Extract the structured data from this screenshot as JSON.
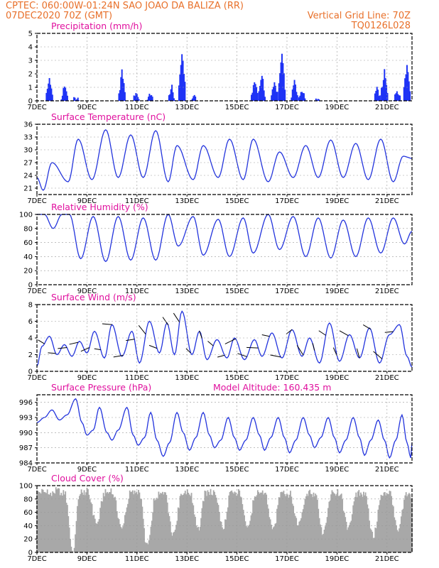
{
  "header": {
    "station_line": "CPTEC:   060:00W-01:24N  SAO JOAO DA BALIZA (RR)",
    "date_line": "07DEC2020 70Z (GMT)",
    "vgrid_line": "Vertical Grid Line: 70Z",
    "code": "TQ0126L028"
  },
  "colors": {
    "line": "#2233dd",
    "bar": "#1f33f5",
    "cloud": "#a8a8a8",
    "header": "#e8702a",
    "title": "#e0109e"
  },
  "x_tick_labels": [
    "7DEC",
    "9DEC",
    "11DEC",
    "13DEC",
    "15DEC",
    "17DEC",
    "19DEC",
    "21DEC"
  ],
  "chart_data": [
    {
      "type": "bar",
      "title": "Precipitation (mm/h)",
      "ylim": [
        0,
        5
      ],
      "yticks": [
        0,
        1,
        2,
        3,
        4,
        5
      ],
      "x_range_days": [
        7,
        22
      ],
      "series_daily_peaks": [
        {
          "day": 7.5,
          "value": 2.0
        },
        {
          "day": 8.1,
          "value": 1.2
        },
        {
          "day": 8.6,
          "value": 0.5
        },
        {
          "day": 10.4,
          "value": 2.2
        },
        {
          "day": 11.0,
          "value": 0.8
        },
        {
          "day": 11.5,
          "value": 0.6
        },
        {
          "day": 12.4,
          "value": 1.1
        },
        {
          "day": 12.8,
          "value": 3.8
        },
        {
          "day": 13.3,
          "value": 0.4
        },
        {
          "day": 15.7,
          "value": 1.8
        },
        {
          "day": 16.0,
          "value": 2.0
        },
        {
          "day": 16.5,
          "value": 1.8
        },
        {
          "day": 16.8,
          "value": 3.6
        },
        {
          "day": 17.3,
          "value": 1.8
        },
        {
          "day": 17.6,
          "value": 0.8
        },
        {
          "day": 18.2,
          "value": 0.5
        },
        {
          "day": 20.6,
          "value": 0.9
        },
        {
          "day": 20.9,
          "value": 2.5
        },
        {
          "day": 21.4,
          "value": 0.8
        },
        {
          "day": 21.8,
          "value": 3.1
        }
      ]
    },
    {
      "type": "line",
      "title": "Surface Temperature (nC)",
      "ylim": [
        19.5,
        36
      ],
      "yticks": [
        21,
        24,
        27,
        30,
        33,
        36
      ],
      "x_range_days": [
        7,
        22
      ],
      "daily_minmax": [
        {
          "day": 7.0,
          "value": 23.5
        },
        {
          "day": 7.25,
          "value": 20.5
        },
        {
          "day": 7.6,
          "value": 27.0
        },
        {
          "day": 8.25,
          "value": 22.5
        },
        {
          "day": 8.65,
          "value": 32.5
        },
        {
          "day": 9.2,
          "value": 23.0
        },
        {
          "day": 9.75,
          "value": 34.7
        },
        {
          "day": 10.25,
          "value": 23.5
        },
        {
          "day": 10.75,
          "value": 33.5
        },
        {
          "day": 11.25,
          "value": 23.5
        },
        {
          "day": 11.75,
          "value": 34.5
        },
        {
          "day": 12.25,
          "value": 22.5
        },
        {
          "day": 12.6,
          "value": 31.0
        },
        {
          "day": 13.25,
          "value": 23.0
        },
        {
          "day": 13.65,
          "value": 31.0
        },
        {
          "day": 14.25,
          "value": 23.5
        },
        {
          "day": 14.7,
          "value": 32.5
        },
        {
          "day": 15.25,
          "value": 23.0
        },
        {
          "day": 15.65,
          "value": 32.5
        },
        {
          "day": 16.25,
          "value": 22.5
        },
        {
          "day": 16.7,
          "value": 29.5
        },
        {
          "day": 17.25,
          "value": 23.5
        },
        {
          "day": 17.75,
          "value": 31.0
        },
        {
          "day": 18.25,
          "value": 23.5
        },
        {
          "day": 18.75,
          "value": 32.3
        },
        {
          "day": 19.25,
          "value": 23.5
        },
        {
          "day": 19.75,
          "value": 31.5
        },
        {
          "day": 20.25,
          "value": 23.0
        },
        {
          "day": 20.75,
          "value": 32.5
        },
        {
          "day": 21.25,
          "value": 22.5
        },
        {
          "day": 21.65,
          "value": 28.5
        },
        {
          "day": 22.0,
          "value": 28.0
        }
      ]
    },
    {
      "type": "line",
      "title": "Relative Humidity (%)",
      "ylim": [
        0,
        100
      ],
      "yticks": [
        0,
        20,
        40,
        60,
        80,
        100
      ],
      "x_range_days": [
        7,
        22
      ],
      "daily_minmax": [
        {
          "day": 7.0,
          "value": 100
        },
        {
          "day": 7.3,
          "value": 100
        },
        {
          "day": 7.65,
          "value": 80
        },
        {
          "day": 8.0,
          "value": 100
        },
        {
          "day": 8.3,
          "value": 100
        },
        {
          "day": 8.75,
          "value": 37
        },
        {
          "day": 9.25,
          "value": 97
        },
        {
          "day": 9.75,
          "value": 33
        },
        {
          "day": 10.25,
          "value": 97
        },
        {
          "day": 10.75,
          "value": 35
        },
        {
          "day": 11.25,
          "value": 95
        },
        {
          "day": 11.75,
          "value": 35
        },
        {
          "day": 12.25,
          "value": 100
        },
        {
          "day": 12.65,
          "value": 55
        },
        {
          "day": 13.25,
          "value": 97
        },
        {
          "day": 13.65,
          "value": 42
        },
        {
          "day": 14.25,
          "value": 93
        },
        {
          "day": 14.7,
          "value": 40
        },
        {
          "day": 15.25,
          "value": 95
        },
        {
          "day": 15.65,
          "value": 45
        },
        {
          "day": 16.25,
          "value": 100
        },
        {
          "day": 16.7,
          "value": 50
        },
        {
          "day": 17.25,
          "value": 97
        },
        {
          "day": 17.75,
          "value": 40
        },
        {
          "day": 18.25,
          "value": 95
        },
        {
          "day": 18.75,
          "value": 38
        },
        {
          "day": 19.25,
          "value": 92
        },
        {
          "day": 19.75,
          "value": 40
        },
        {
          "day": 20.25,
          "value": 95
        },
        {
          "day": 20.75,
          "value": 45
        },
        {
          "day": 21.25,
          "value": 95
        },
        {
          "day": 21.7,
          "value": 58
        },
        {
          "day": 22.0,
          "value": 76
        }
      ]
    },
    {
      "type": "line",
      "title": "Surface Wind (m/s)",
      "ylim": [
        0,
        8
      ],
      "yticks": [
        0,
        2,
        4,
        6,
        8
      ],
      "x_range_days": [
        7,
        22
      ],
      "values_approx": [
        {
          "day": 7.0,
          "value": 0.6
        },
        {
          "day": 7.2,
          "value": 3.0
        },
        {
          "day": 7.5,
          "value": 4.2
        },
        {
          "day": 7.8,
          "value": 2.0
        },
        {
          "day": 8.1,
          "value": 3.2
        },
        {
          "day": 8.4,
          "value": 1.8
        },
        {
          "day": 8.7,
          "value": 3.6
        },
        {
          "day": 9.0,
          "value": 2.2
        },
        {
          "day": 9.3,
          "value": 4.8
        },
        {
          "day": 9.7,
          "value": 1.6
        },
        {
          "day": 10.0,
          "value": 5.6
        },
        {
          "day": 10.4,
          "value": 1.8
        },
        {
          "day": 10.8,
          "value": 4.8
        },
        {
          "day": 11.1,
          "value": 1.0
        },
        {
          "day": 11.5,
          "value": 6.0
        },
        {
          "day": 11.9,
          "value": 2.2
        },
        {
          "day": 12.2,
          "value": 5.8
        },
        {
          "day": 12.5,
          "value": 2.0
        },
        {
          "day": 12.8,
          "value": 7.2
        },
        {
          "day": 13.2,
          "value": 2.0
        },
        {
          "day": 13.5,
          "value": 4.8
        },
        {
          "day": 13.8,
          "value": 1.4
        },
        {
          "day": 14.2,
          "value": 3.8
        },
        {
          "day": 14.6,
          "value": 1.6
        },
        {
          "day": 14.9,
          "value": 4.0
        },
        {
          "day": 15.3,
          "value": 1.4
        },
        {
          "day": 15.7,
          "value": 3.8
        },
        {
          "day": 16.0,
          "value": 1.8
        },
        {
          "day": 16.4,
          "value": 4.6
        },
        {
          "day": 16.8,
          "value": 1.6
        },
        {
          "day": 17.2,
          "value": 5.0
        },
        {
          "day": 17.6,
          "value": 1.8
        },
        {
          "day": 17.9,
          "value": 4.0
        },
        {
          "day": 18.3,
          "value": 1.0
        },
        {
          "day": 18.7,
          "value": 5.8
        },
        {
          "day": 19.1,
          "value": 1.2
        },
        {
          "day": 19.5,
          "value": 4.4
        },
        {
          "day": 19.9,
          "value": 1.6
        },
        {
          "day": 20.3,
          "value": 5.2
        },
        {
          "day": 20.7,
          "value": 1.0
        },
        {
          "day": 21.1,
          "value": 4.4
        },
        {
          "day": 21.5,
          "value": 5.6
        },
        {
          "day": 21.8,
          "value": 1.8
        },
        {
          "day": 22.0,
          "value": 0.5
        }
      ],
      "wind_arrows_note": "direction vectors plotted along series"
    },
    {
      "type": "line",
      "title": "Surface Pressure (hPa)",
      "annotation": "Model Altitude: 160.435 m",
      "ylim": [
        984,
        997.5
      ],
      "yticks": [
        984,
        987,
        990,
        993,
        996
      ],
      "x_range_days": [
        7,
        22
      ],
      "values_approx": [
        {
          "day": 7.0,
          "value": 992.0
        },
        {
          "day": 7.3,
          "value": 993.0
        },
        {
          "day": 7.6,
          "value": 994.5
        },
        {
          "day": 7.9,
          "value": 992.5
        },
        {
          "day": 8.2,
          "value": 993.5
        },
        {
          "day": 8.55,
          "value": 996.7
        },
        {
          "day": 8.8,
          "value": 992.0
        },
        {
          "day": 9.0,
          "value": 989.5
        },
        {
          "day": 9.25,
          "value": 990.5
        },
        {
          "day": 9.5,
          "value": 995.0
        },
        {
          "day": 9.8,
          "value": 990.0
        },
        {
          "day": 10.0,
          "value": 988.5
        },
        {
          "day": 10.25,
          "value": 990.5
        },
        {
          "day": 10.6,
          "value": 995.0
        },
        {
          "day": 10.85,
          "value": 989.5
        },
        {
          "day": 11.05,
          "value": 987.5
        },
        {
          "day": 11.3,
          "value": 989.0
        },
        {
          "day": 11.55,
          "value": 994.0
        },
        {
          "day": 11.8,
          "value": 988.5
        },
        {
          "day": 12.05,
          "value": 985.3
        },
        {
          "day": 12.3,
          "value": 988.0
        },
        {
          "day": 12.6,
          "value": 994.0
        },
        {
          "day": 12.85,
          "value": 990.0
        },
        {
          "day": 13.1,
          "value": 986.5
        },
        {
          "day": 13.35,
          "value": 989.0
        },
        {
          "day": 13.65,
          "value": 994.0
        },
        {
          "day": 13.9,
          "value": 989.5
        },
        {
          "day": 14.1,
          "value": 987.0
        },
        {
          "day": 14.35,
          "value": 988.5
        },
        {
          "day": 14.65,
          "value": 993.0
        },
        {
          "day": 14.9,
          "value": 989.0
        },
        {
          "day": 15.1,
          "value": 986.5
        },
        {
          "day": 15.35,
          "value": 988.5
        },
        {
          "day": 15.65,
          "value": 993.0
        },
        {
          "day": 15.9,
          "value": 989.5
        },
        {
          "day": 16.1,
          "value": 986.5
        },
        {
          "day": 16.35,
          "value": 989.0
        },
        {
          "day": 16.65,
          "value": 993.0
        },
        {
          "day": 16.9,
          "value": 989.0
        },
        {
          "day": 17.1,
          "value": 986.0
        },
        {
          "day": 17.35,
          "value": 988.5
        },
        {
          "day": 17.65,
          "value": 993.0
        },
        {
          "day": 17.9,
          "value": 989.5
        },
        {
          "day": 18.1,
          "value": 987.0
        },
        {
          "day": 18.35,
          "value": 989.0
        },
        {
          "day": 18.65,
          "value": 993.0
        },
        {
          "day": 18.9,
          "value": 989.0
        },
        {
          "day": 19.1,
          "value": 986.0
        },
        {
          "day": 19.35,
          "value": 988.5
        },
        {
          "day": 19.65,
          "value": 993.0
        },
        {
          "day": 19.9,
          "value": 989.0
        },
        {
          "day": 20.1,
          "value": 985.5
        },
        {
          "day": 20.35,
          "value": 988.5
        },
        {
          "day": 20.65,
          "value": 992.5
        },
        {
          "day": 20.9,
          "value": 988.5
        },
        {
          "day": 21.1,
          "value": 985.0
        },
        {
          "day": 21.35,
          "value": 988.5
        },
        {
          "day": 21.6,
          "value": 993.5
        },
        {
          "day": 21.8,
          "value": 988.0
        },
        {
          "day": 21.95,
          "value": 985.0
        },
        {
          "day": 22.0,
          "value": 988.0
        }
      ]
    },
    {
      "type": "area",
      "title": "Cloud Cover (%)",
      "ylim": [
        0,
        100
      ],
      "yticks": [
        0,
        20,
        40,
        60,
        80,
        100
      ],
      "x_range_days": [
        7,
        22
      ],
      "values_approx": [
        {
          "day": 7.0,
          "value": 95
        },
        {
          "day": 7.2,
          "value": 97
        },
        {
          "day": 7.5,
          "value": 94
        },
        {
          "day": 7.8,
          "value": 98
        },
        {
          "day": 8.1,
          "value": 96
        },
        {
          "day": 8.45,
          "value": 5
        },
        {
          "day": 8.7,
          "value": 95
        },
        {
          "day": 9.0,
          "value": 97
        },
        {
          "day": 9.4,
          "value": 50
        },
        {
          "day": 9.7,
          "value": 95
        },
        {
          "day": 10.0,
          "value": 96
        },
        {
          "day": 10.4,
          "value": 45
        },
        {
          "day": 10.75,
          "value": 95
        },
        {
          "day": 11.1,
          "value": 94
        },
        {
          "day": 11.4,
          "value": 15
        },
        {
          "day": 11.75,
          "value": 90
        },
        {
          "day": 12.1,
          "value": 94
        },
        {
          "day": 12.45,
          "value": 35
        },
        {
          "day": 12.8,
          "value": 92
        },
        {
          "day": 13.1,
          "value": 96
        },
        {
          "day": 13.45,
          "value": 40
        },
        {
          "day": 13.75,
          "value": 95
        },
        {
          "day": 14.1,
          "value": 97
        },
        {
          "day": 14.45,
          "value": 42
        },
        {
          "day": 14.75,
          "value": 95
        },
        {
          "day": 15.1,
          "value": 96
        },
        {
          "day": 15.45,
          "value": 45
        },
        {
          "day": 15.75,
          "value": 95
        },
        {
          "day": 16.1,
          "value": 96
        },
        {
          "day": 16.45,
          "value": 38
        },
        {
          "day": 16.75,
          "value": 93
        },
        {
          "day": 17.1,
          "value": 94
        },
        {
          "day": 17.45,
          "value": 48
        },
        {
          "day": 17.8,
          "value": 94
        },
        {
          "day": 18.1,
          "value": 95
        },
        {
          "day": 18.45,
          "value": 35
        },
        {
          "day": 18.8,
          "value": 94
        },
        {
          "day": 19.1,
          "value": 96
        },
        {
          "day": 19.45,
          "value": 40
        },
        {
          "day": 19.8,
          "value": 94
        },
        {
          "day": 20.1,
          "value": 93
        },
        {
          "day": 20.45,
          "value": 30
        },
        {
          "day": 20.8,
          "value": 94
        },
        {
          "day": 21.1,
          "value": 96
        },
        {
          "day": 21.45,
          "value": 42
        },
        {
          "day": 21.8,
          "value": 95
        },
        {
          "day": 22.0,
          "value": 90
        }
      ]
    }
  ]
}
